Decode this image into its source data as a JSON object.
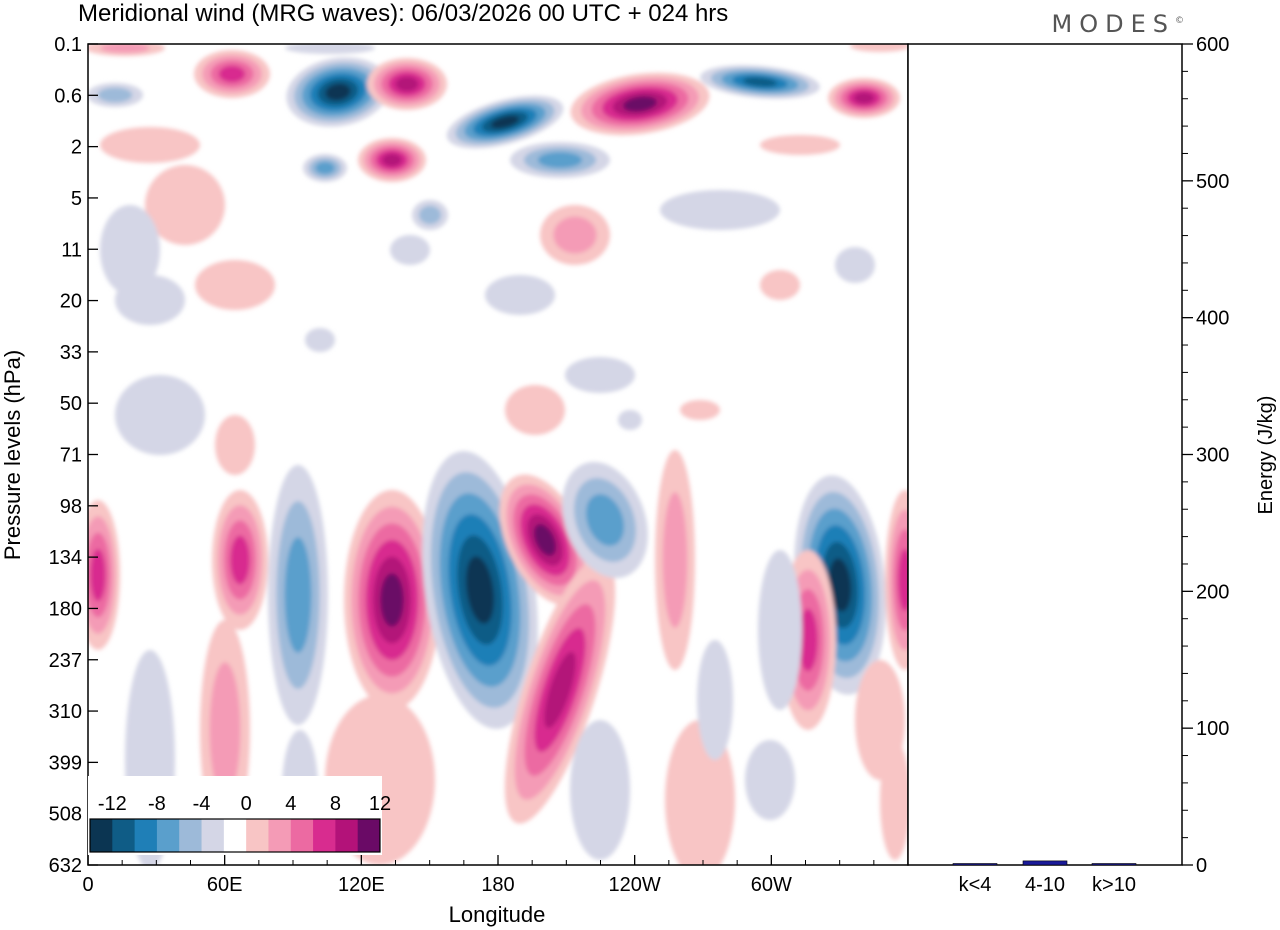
{
  "header": {
    "title": "Meridional wind (MRG waves):  06/03/2026  00 UTC  + 024 hrs",
    "logo": "MODES",
    "logo_mark": "©"
  },
  "chart_data": [
    {
      "type": "heatmap",
      "title": "Meridional wind (MRG waves)",
      "xlabel": "Longitude",
      "ylabel": "Pressure levels (hPa)",
      "x_ticks": [
        "0",
        "60E",
        "120E",
        "180",
        "120W",
        "60W"
      ],
      "x_tick_values": [
        0,
        60,
        120,
        180,
        240,
        300
      ],
      "xlim": [
        0,
        360
      ],
      "y_ticks": [
        "0.1",
        "0.6",
        "2",
        "5",
        "11",
        "20",
        "33",
        "50",
        "71",
        "98",
        "134",
        "180",
        "237",
        "310",
        "399",
        "508",
        "632"
      ],
      "colorbar": {
        "labels": [
          "-12",
          "-8",
          "-4",
          "0",
          "4",
          "8",
          "12"
        ],
        "levels": [
          -14,
          -12,
          -10,
          -8,
          -6,
          -4,
          -2,
          2,
          4,
          6,
          8,
          10,
          12,
          14
        ],
        "colors": [
          "#0b3552",
          "#0f5c86",
          "#1f7fb7",
          "#5a9fcc",
          "#9dbad9",
          "#d4d6e6",
          "#ffffff",
          "#f8c5c5",
          "#f49bb6",
          "#ec6aa2",
          "#d82c8f",
          "#b31279",
          "#6a0a66"
        ]
      },
      "accent_colors": {
        "positive": "#d82c8f",
        "negative": "#1f7fb7",
        "zero": "#ffffff"
      }
    },
    {
      "type": "bar",
      "ylabel": "Energy (J/kg)",
      "ylim": [
        0,
        600
      ],
      "y_ticks": [
        "0",
        "100",
        "200",
        "300",
        "400",
        "500",
        "600"
      ],
      "y_tick_values": [
        0,
        100,
        200,
        300,
        400,
        500,
        600
      ],
      "categories": [
        "k<4",
        "4-10",
        "k>10"
      ],
      "values": [
        0.5,
        3,
        0.3
      ],
      "bar_color": "#1a1a99"
    }
  ]
}
